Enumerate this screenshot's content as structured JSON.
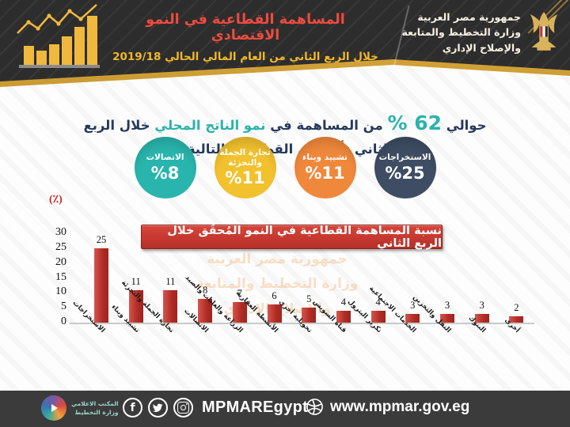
{
  "header": {
    "title": "المساهمة القطاعية في النمو الاقتصادي",
    "subtitle": "خلال الربع الثاني من العام المالي الحالي 2019/18",
    "ministry_lines": [
      "جمهورية مصر العربية",
      "وزارة التخطيط والمتابعة",
      "والإصلاح الإداري"
    ],
    "title_color": "#ef4b3e",
    "subtitle_color": "#f0b929"
  },
  "intro": {
    "prefix": "حوالي",
    "value": "62 %",
    "middle": "من المساهمة في",
    "highlight": "نمو الناتج المحلي",
    "suffix": "خلال الربع الثاني تأتي من القطاعات التالية :",
    "accent_color": "#2ab3ab",
    "text_color": "#24395c"
  },
  "bubbles": [
    {
      "label": "الاتصالات",
      "value": "%8",
      "color": "#29b5ad"
    },
    {
      "label": "تجارة الجملة والتجزئة",
      "value": "%11",
      "color": "#f2c12e"
    },
    {
      "label": "تشييد وبناء",
      "value": "%11",
      "color": "#f0883b"
    },
    {
      "label": "الاستخراجات",
      "value": "%25",
      "color": "#3e4d63"
    }
  ],
  "chart_data": {
    "type": "bar",
    "title": "نسبة المساهمة القطاعية في النمو المُحقَق خلال الربع الثاني",
    "unit_label": "(٪)",
    "categories": [
      "الاستخراجات",
      "تشييد وبناء",
      "تجارة الجملة والتجزئة",
      "الاتصالات",
      "الزراعة والغابات والصيد",
      "الأنشطة العقارية",
      "تحويلية أخرى",
      "قناة السويس",
      "تكرير البترول",
      "الخدمات الاجتماعية",
      "النقل والتخزين",
      "البنوك",
      "أخرى"
    ],
    "values": [
      25,
      11,
      11,
      8,
      7,
      6,
      5,
      4,
      4,
      3,
      3,
      3,
      2
    ],
    "yticks": [
      30,
      25,
      20,
      15,
      10,
      5,
      0
    ],
    "ylim": [
      0,
      30
    ],
    "bar_color": "#b8342c",
    "grid": false,
    "legend": "none"
  },
  "watermark_lines": [
    "جمهورية مصر العربية",
    "وزارة التخطيط والمتابعة",
    "والإصلاح الإداري"
  ],
  "footer": {
    "logo_line1": "المكتب الاعلامي",
    "logo_line2": "وزارة التخطيط",
    "social_handle": "MPMAREgypt",
    "website": "www.mpmar.gov.eg",
    "icons": [
      "facebook-icon",
      "twitter-icon",
      "instagram-icon",
      "globe-icon"
    ]
  }
}
